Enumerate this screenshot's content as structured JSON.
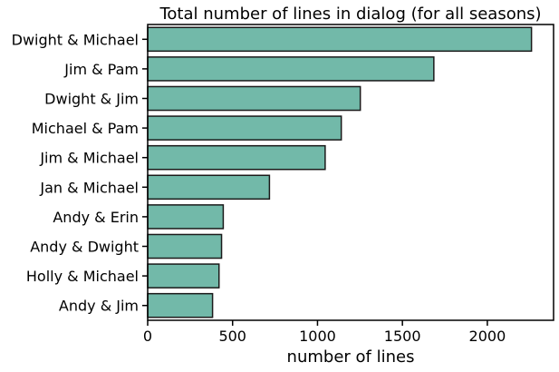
{
  "chart_data": {
    "type": "bar",
    "orientation": "horizontal",
    "title": "Total number of lines in dialog (for all seasons)",
    "xlabel": "number of lines",
    "ylabel": "",
    "categories": [
      "Dwight & Michael",
      "Jim & Pam",
      "Dwight & Jim",
      "Michael & Pam",
      "Jim & Michael",
      "Jan & Michael",
      "Andy & Erin",
      "Andy & Dwight",
      "Holly & Michael",
      "Andy & Jim"
    ],
    "values": [
      2260,
      1685,
      1252,
      1140,
      1045,
      717,
      445,
      435,
      420,
      382
    ],
    "xlim": [
      0,
      2390
    ],
    "xticks": [
      0,
      500,
      1000,
      1500,
      2000
    ],
    "grid": false,
    "colors": {
      "bar_fill": "#72b9a9",
      "bar_edge": "#1a1a1a"
    }
  }
}
